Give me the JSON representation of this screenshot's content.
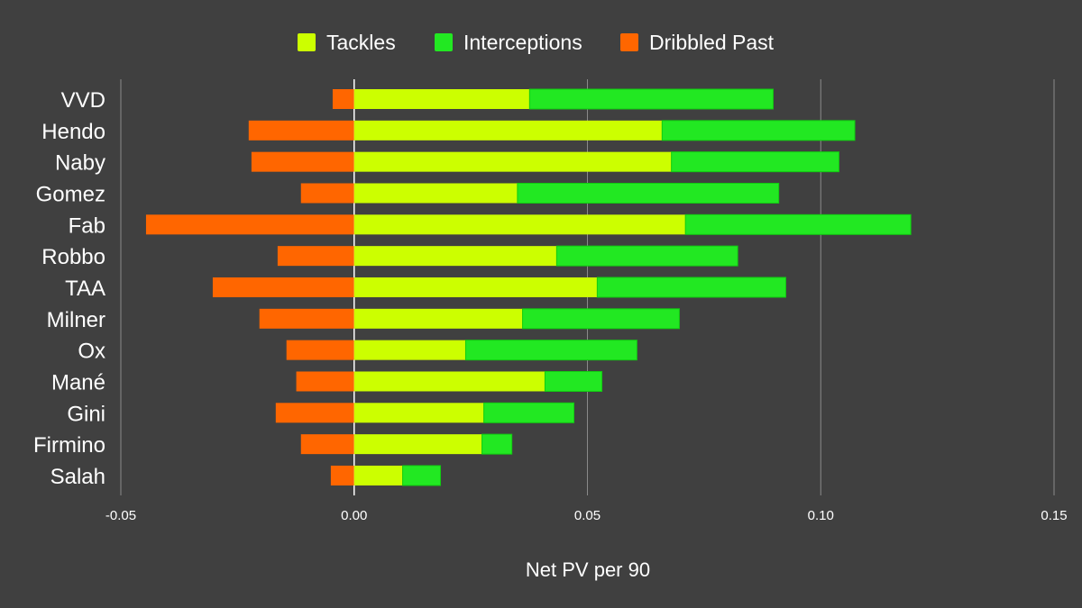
{
  "chart_data": {
    "type": "bar",
    "orientation": "horizontal",
    "stacked": true,
    "title": "",
    "xlabel": "Net PV per 90",
    "ylabel": "",
    "xlim": [
      -0.05,
      0.15
    ],
    "xticks": [
      -0.05,
      0.0,
      0.05,
      0.1,
      0.15
    ],
    "xtick_labels": [
      "-0.05",
      "0.00",
      "0.05",
      "0.10",
      "0.15"
    ],
    "grid": true,
    "legend_position": "top",
    "categories": [
      "VVD",
      "Hendo",
      "Naby",
      "Gomez",
      "Fab",
      "Robbo",
      "TAA",
      "Milner",
      "Ox",
      "Mané",
      "Gini",
      "Firmino",
      "Salah"
    ],
    "series": [
      {
        "name": "Tackles",
        "color": "#ccff00",
        "values": [
          0.0376,
          0.066,
          0.068,
          0.035,
          0.071,
          0.0434,
          0.0521,
          0.0361,
          0.0239,
          0.0409,
          0.0278,
          0.0274,
          0.0104
        ]
      },
      {
        "name": "Interceptions",
        "color": "#22e822",
        "values": [
          0.0522,
          0.0413,
          0.0359,
          0.056,
          0.0483,
          0.0388,
          0.0404,
          0.0336,
          0.0367,
          0.0122,
          0.0193,
          0.0064,
          0.0081
        ]
      },
      {
        "name": "Dribbled Past",
        "color": "#ff6600",
        "values": [
          -0.0046,
          -0.0226,
          -0.022,
          -0.0114,
          -0.0446,
          -0.0164,
          -0.0303,
          -0.0203,
          -0.0145,
          -0.0124,
          -0.0168,
          -0.0114,
          -0.005
        ]
      }
    ]
  }
}
